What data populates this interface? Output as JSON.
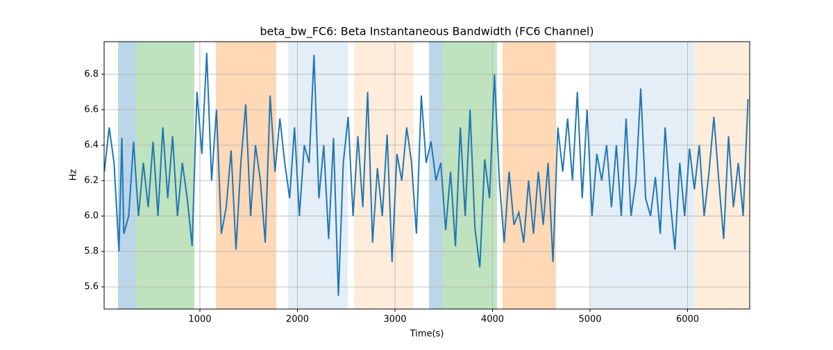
{
  "chart_data": {
    "type": "line",
    "title": "beta_bw_FC6: Beta Instantaneous Bandwidth (FC6 Channel)",
    "x_label": "Time(s)",
    "y_label": "Hz",
    "xlim": [
      18,
      6637
    ],
    "ylim": [
      5.475,
      6.984
    ],
    "xticks": [
      1000,
      2000,
      3000,
      4000,
      5000,
      6000
    ],
    "yticks": [
      5.6,
      5.8,
      {
        "value": 6,
        "label": "6.0"
      },
      6.2,
      6.4,
      6.6,
      6.8
    ],
    "grid": true,
    "color": "#1f77b4",
    "regions": [
      {
        "start": 160,
        "end": 345,
        "color": "#1f77b4",
        "opacity": 0.3
      },
      {
        "start": 345,
        "end": 943,
        "color": "#2ca02c",
        "opacity": 0.3
      },
      {
        "start": 1164,
        "end": 1783,
        "color": "#ff7f0e",
        "opacity": 0.3
      },
      {
        "start": 1904,
        "end": 2516,
        "color": "#1f77b4",
        "opacity": 0.12
      },
      {
        "start": 2580,
        "end": 3192,
        "color": "#ff7f0e",
        "opacity": 0.15
      },
      {
        "start": 3349,
        "end": 3491,
        "color": "#1f77b4",
        "opacity": 0.3
      },
      {
        "start": 3491,
        "end": 4046,
        "color": "#2ca02c",
        "opacity": 0.3
      },
      {
        "start": 4103,
        "end": 4651,
        "color": "#ff7f0e",
        "opacity": 0.3
      },
      {
        "start": 5007,
        "end": 6075,
        "color": "#1f77b4",
        "opacity": 0.12
      },
      {
        "start": 6075,
        "end": 6637,
        "color": "#ff7f0e",
        "opacity": 0.15
      }
    ],
    "x": [
      20,
      70,
      120,
      170,
      200,
      220,
      270,
      320,
      370,
      420,
      470,
      520,
      570,
      620,
      670,
      720,
      770,
      820,
      870,
      920,
      970,
      1020,
      1070,
      1120,
      1170,
      1220,
      1270,
      1320,
      1370,
      1420,
      1470,
      1520,
      1570,
      1620,
      1670,
      1720,
      1770,
      1820,
      1870,
      1920,
      1970,
      2020,
      2070,
      2120,
      2170,
      2220,
      2270,
      2320,
      2370,
      2420,
      2470,
      2520,
      2570,
      2620,
      2670,
      2720,
      2770,
      2820,
      2870,
      2920,
      2970,
      3020,
      3070,
      3120,
      3170,
      3220,
      3270,
      3320,
      3370,
      3420,
      3470,
      3520,
      3570,
      3620,
      3670,
      3720,
      3770,
      3820,
      3870,
      3920,
      3970,
      4020,
      4070,
      4120,
      4170,
      4220,
      4270,
      4320,
      4370,
      4420,
      4470,
      4520,
      4570,
      4620,
      4670,
      4720,
      4770,
      4820,
      4870,
      4920,
      4970,
      5020,
      5070,
      5120,
      5170,
      5220,
      5270,
      5320,
      5370,
      5420,
      5470,
      5520,
      5570,
      5620,
      5670,
      5720,
      5770,
      5820,
      5870,
      5920,
      5970,
      6020,
      6070,
      6120,
      6170,
      6220,
      6270,
      6320,
      6370,
      6420,
      6470,
      6520,
      6570,
      6620
    ],
    "values": [
      6.25,
      6.5,
      6.3,
      5.8,
      6.44,
      5.9,
      6.0,
      6.42,
      6.0,
      6.3,
      6.05,
      6.42,
      6.0,
      6.5,
      6.1,
      6.45,
      6.0,
      6.3,
      6.1,
      5.83,
      6.7,
      6.35,
      6.92,
      6.2,
      6.6,
      5.9,
      6.05,
      6.37,
      5.81,
      6.3,
      6.63,
      6.0,
      6.4,
      6.2,
      5.85,
      6.68,
      6.25,
      6.55,
      6.3,
      6.1,
      6.5,
      6.0,
      6.4,
      6.3,
      6.91,
      6.1,
      6.4,
      5.87,
      6.44,
      5.55,
      6.3,
      6.56,
      6.0,
      6.45,
      6.05,
      6.7,
      5.85,
      6.27,
      6.0,
      6.46,
      5.74,
      6.35,
      6.2,
      6.5,
      6.3,
      5.9,
      6.68,
      6.3,
      6.42,
      6.2,
      6.3,
      5.92,
      6.25,
      5.83,
      6.5,
      6.0,
      6.6,
      5.93,
      5.71,
      6.32,
      6.1,
      6.8,
      6.2,
      5.85,
      6.25,
      5.95,
      6.02,
      5.85,
      6.2,
      5.9,
      6.25,
      5.95,
      6.3,
      5.74,
      6.5,
      6.25,
      6.55,
      6.2,
      6.7,
      6.1,
      6.6,
      6.0,
      6.35,
      6.2,
      6.4,
      6.05,
      6.4,
      6.0,
      6.55,
      6.0,
      6.2,
      6.72,
      6.1,
      6.0,
      6.22,
      5.9,
      6.5,
      6.1,
      5.81,
      6.3,
      6.0,
      6.38,
      6.15,
      6.4,
      6.0,
      6.25,
      6.56,
      6.2,
      5.87,
      6.45,
      6.05,
      6.3,
      6.0,
      6.66
    ]
  }
}
